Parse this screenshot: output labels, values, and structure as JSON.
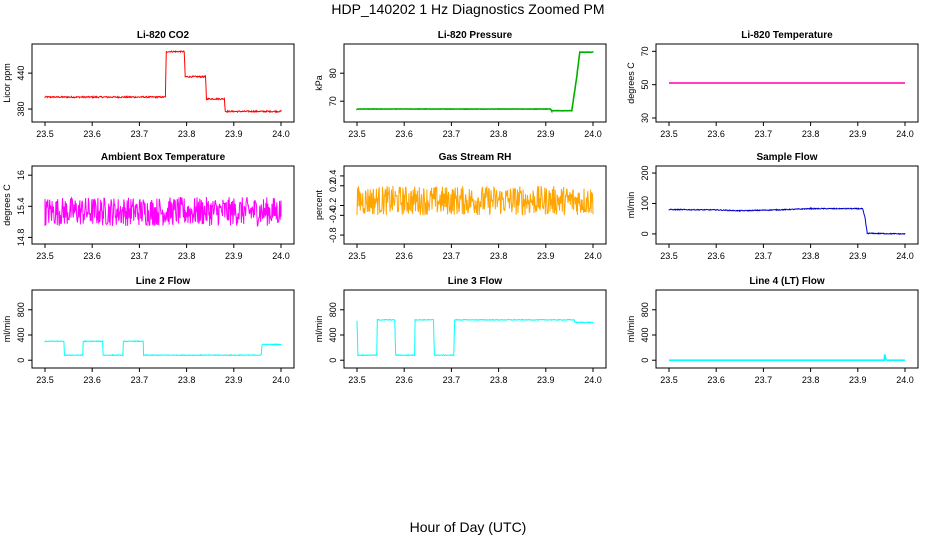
{
  "title": "HDP_140202  1 Hz Diagnostics Zoomed PM",
  "xlabel": "Hour of Day (UTC)",
  "chart_data": [
    {
      "type": "line",
      "title": "Li-820 CO2",
      "ylabel": "Licor ppm",
      "color": "#ff0000",
      "xlim": [
        23.5,
        24.0
      ],
      "ylim": [
        365,
        482
      ],
      "xticks": [
        "23.5",
        "23.6",
        "23.7",
        "23.8",
        "23.9",
        "24.0"
      ],
      "yticks": [
        380,
        440
      ],
      "noise": 1.2,
      "x": [
        23.5,
        23.755,
        23.757,
        23.795,
        23.797,
        23.84,
        23.842,
        23.88,
        23.882,
        24.0
      ],
      "y": [
        400,
        400,
        476,
        476,
        434,
        434,
        397,
        397,
        376,
        376
      ]
    },
    {
      "type": "line",
      "title": "Li-820 Pressure",
      "ylabel": "kPa",
      "color": "#00b000",
      "xlim": [
        23.5,
        24.0
      ],
      "ylim": [
        64,
        89
      ],
      "xticks": [
        "23.5",
        "23.6",
        "23.7",
        "23.8",
        "23.9",
        "24.0"
      ],
      "yticks": [
        70,
        80
      ],
      "noise": 0.05,
      "x": [
        23.5,
        23.91,
        23.912,
        23.955,
        23.965,
        23.972,
        24.0
      ],
      "y": [
        67.2,
        67.2,
        66.6,
        66.6,
        78,
        87.5,
        87.5
      ]
    },
    {
      "type": "line",
      "title": "Li-820 Temperature",
      "ylabel": "degrees C",
      "color": "#ff00a0",
      "xlim": [
        23.5,
        24.0
      ],
      "ylim": [
        30,
        72
      ],
      "xticks": [
        "23.5",
        "23.6",
        "23.7",
        "23.8",
        "23.9",
        "24.0"
      ],
      "yticks": [
        30,
        50,
        70
      ],
      "noise": 0,
      "x": [
        23.5,
        24.0
      ],
      "y": [
        51,
        51
      ]
    },
    {
      "type": "line",
      "title": "Ambient Box Temperature",
      "ylabel": "degrees C",
      "color": "#ff00ff",
      "xlim": [
        23.5,
        24.0
      ],
      "ylim": [
        14.75,
        16.1
      ],
      "xticks": [
        "23.5",
        "23.6",
        "23.7",
        "23.8",
        "23.9",
        "24.0"
      ],
      "yticks": [
        14.8,
        15.4,
        16.0
      ],
      "noise": 0.28,
      "x": [
        23.5,
        24.0
      ],
      "y": [
        15.3,
        15.3
      ]
    },
    {
      "type": "line",
      "title": "Gas Stream RH",
      "ylabel": "percent",
      "color": "#ffa500",
      "xlim": [
        23.5,
        24.0
      ],
      "ylim": [
        -0.9,
        0.52
      ],
      "xticks": [
        "23.5",
        "23.6",
        "23.7",
        "23.8",
        "23.9",
        "24.0"
      ],
      "yticks": [
        -0.8,
        -0.4,
        -0.2,
        0.2,
        0.4
      ],
      "noise": 0.3,
      "x": [
        23.5,
        24.0
      ],
      "y": [
        -0.1,
        -0.1
      ]
    },
    {
      "type": "line",
      "title": "Sample Flow",
      "ylabel": "ml/min",
      "color": "#0000cc",
      "xlim": [
        23.5,
        24.0
      ],
      "ylim": [
        -20,
        210
      ],
      "xticks": [
        "23.5",
        "23.6",
        "23.7",
        "23.8",
        "23.9",
        "24.0"
      ],
      "yticks": [
        0,
        100,
        200
      ],
      "noise": 1.5,
      "x": [
        23.5,
        23.6,
        23.65,
        23.75,
        23.8,
        23.91,
        23.915,
        23.92,
        24.0
      ],
      "y": [
        80,
        79,
        76,
        80,
        83,
        83,
        55,
        2,
        0
      ]
    },
    {
      "type": "line",
      "title": "Line 2 Flow",
      "ylabel": "ml/min",
      "color": "#00ffff",
      "xlim": [
        23.5,
        24.0
      ],
      "ylim": [
        -60,
        1050
      ],
      "xticks": [
        "23.5",
        "23.6",
        "23.7",
        "23.8",
        "23.9",
        "24.0"
      ],
      "yticks": [
        0,
        400,
        800
      ],
      "noise": 6,
      "x": [
        23.5,
        23.5,
        23.54,
        23.541,
        23.58,
        23.581,
        23.622,
        23.623,
        23.665,
        23.666,
        23.708,
        23.709,
        23.958,
        23.96,
        24.0
      ],
      "y": [
        100,
        300,
        300,
        80,
        80,
        300,
        300,
        80,
        80,
        300,
        300,
        80,
        80,
        250,
        250
      ]
    },
    {
      "type": "line",
      "title": "Line 3 Flow",
      "ylabel": "ml/min",
      "color": "#00ffff",
      "xlim": [
        23.5,
        24.0
      ],
      "ylim": [
        -60,
        1050
      ],
      "xticks": [
        "23.5",
        "23.6",
        "23.7",
        "23.8",
        "23.9",
        "24.0"
      ],
      "yticks": [
        0,
        400,
        800
      ],
      "noise": 6,
      "x": [
        23.5,
        23.5,
        23.502,
        23.542,
        23.543,
        23.58,
        23.582,
        23.622,
        23.623,
        23.662,
        23.664,
        23.705,
        23.707,
        23.96,
        23.962,
        24.0
      ],
      "y": [
        620,
        620,
        80,
        80,
        640,
        640,
        80,
        80,
        640,
        640,
        80,
        80,
        640,
        640,
        600,
        600
      ]
    },
    {
      "type": "line",
      "title": "Line 4 (LT) Flow",
      "ylabel": "ml/min",
      "color": "#00ffff",
      "xlim": [
        23.5,
        24.0
      ],
      "ylim": [
        -60,
        1050
      ],
      "xticks": [
        "23.5",
        "23.6",
        "23.7",
        "23.8",
        "23.9",
        "24.0"
      ],
      "yticks": [
        0,
        400,
        800
      ],
      "noise": 0,
      "x": [
        23.5,
        23.956,
        23.957,
        23.96,
        23.962,
        24.0
      ],
      "y": [
        0,
        0,
        90,
        10,
        0,
        0
      ]
    }
  ]
}
